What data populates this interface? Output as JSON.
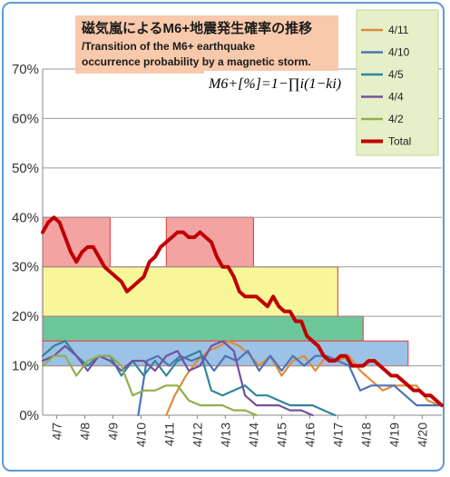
{
  "chart_data": {
    "type": "line",
    "title_line1": "磁気嵐によるM6+地震発生確率の推移",
    "title_line2": "/Transition of the M6+ earthquake",
    "title_line3": "occurrence probability by a magnetic storm.",
    "formula": "M6+[%]=1−∏i(1−ki)",
    "ylim": [
      0,
      70
    ],
    "yticks": [
      "0%",
      "10%",
      "20%",
      "30%",
      "40%",
      "50%",
      "60%",
      "70%"
    ],
    "xlim": [
      6.5,
      20.7
    ],
    "xticks": [
      {
        "v": 7,
        "label": "4/7"
      },
      {
        "v": 8,
        "label": "4/8"
      },
      {
        "v": 9,
        "label": "4/9"
      },
      {
        "v": 10,
        "label": "4/10"
      },
      {
        "v": 11,
        "label": "4/11"
      },
      {
        "v": 12,
        "label": "4/12"
      },
      {
        "v": 13,
        "label": "4/13"
      },
      {
        "v": 14,
        "label": "4/14"
      },
      {
        "v": 15,
        "label": "4/15"
      },
      {
        "v": 16,
        "label": "4/16"
      },
      {
        "v": 17,
        "label": "4/17"
      },
      {
        "v": 18,
        "label": "4/18"
      },
      {
        "v": 19,
        "label": "4/19"
      },
      {
        "v": 20,
        "label": "4/20"
      }
    ],
    "bands": [
      {
        "x0": 6.5,
        "x1": 8.9,
        "y0": 30,
        "y1": 40,
        "fill": "#f4a3a3",
        "stroke": "#e05050"
      },
      {
        "x0": 10.9,
        "x1": 14.0,
        "y0": 30,
        "y1": 40,
        "fill": "#f4a3a3",
        "stroke": "#e05050"
      },
      {
        "x0": 6.5,
        "x1": 17.0,
        "y0": 20,
        "y1": 30,
        "fill": "#f7f79a",
        "stroke": "#e05050"
      },
      {
        "x0": 6.5,
        "x1": 17.9,
        "y0": 15,
        "y1": 20,
        "fill": "#6cc79a",
        "stroke": "#e05050"
      },
      {
        "x0": 6.5,
        "x1": 19.5,
        "y0": 10,
        "y1": 15,
        "fill": "#9cc2e5",
        "stroke": "#e05050"
      }
    ],
    "series": [
      {
        "name": "4/11",
        "color": "#e08a3c",
        "x": [
          10.9,
          11.2,
          11.6,
          12.0,
          12.4,
          12.8,
          13.1,
          13.5,
          13.9,
          14.2,
          14.6,
          15.0,
          15.4,
          15.8,
          16.2,
          16.6,
          17.0,
          17.4,
          17.8,
          18.2,
          18.6,
          19.0,
          19.4,
          19.8,
          20.2,
          20.6
        ],
        "y": [
          0,
          4,
          8,
          11,
          13,
          14,
          15,
          14,
          12,
          10,
          12,
          8,
          11,
          12,
          9,
          12,
          11,
          12,
          9,
          7,
          5,
          6,
          6,
          6,
          3,
          2
        ]
      },
      {
        "name": "4/10",
        "color": "#4a74b8",
        "x": [
          9.9,
          10.2,
          10.6,
          11.0,
          11.4,
          11.8,
          12.2,
          12.6,
          13.0,
          13.4,
          13.8,
          14.2,
          14.6,
          15.0,
          15.4,
          15.8,
          16.2,
          16.6,
          17.0,
          17.4,
          17.8,
          18.2,
          18.6,
          19.0,
          19.4,
          19.8,
          20.2,
          20.6
        ],
        "y": [
          0,
          11,
          12,
          10,
          12,
          11,
          12,
          9,
          12,
          11,
          13,
          9,
          12,
          9,
          12,
          10,
          12,
          12,
          11,
          10,
          5,
          6,
          6,
          6,
          4,
          2,
          2,
          2
        ]
      },
      {
        "name": "4/5",
        "color": "#31859c",
        "x": [
          6.5,
          6.9,
          7.3,
          7.7,
          8.1,
          8.5,
          8.9,
          9.3,
          9.7,
          10.1,
          10.5,
          10.9,
          11.3,
          11.7,
          12.1,
          12.5,
          12.9,
          13.3,
          13.7,
          14.1,
          14.5,
          14.9,
          15.3,
          15.7,
          16.1,
          16.5,
          16.9
        ],
        "y": [
          12,
          14,
          15,
          12,
          10,
          12,
          12,
          8,
          11,
          8,
          11,
          8,
          11,
          12,
          13,
          5,
          4,
          5,
          6,
          4,
          4,
          3,
          2,
          2,
          2,
          1,
          0
        ]
      },
      {
        "name": "4/4",
        "color": "#7451a0",
        "x": [
          6.5,
          6.9,
          7.3,
          7.7,
          8.1,
          8.5,
          8.9,
          9.3,
          9.7,
          10.1,
          10.5,
          10.9,
          11.3,
          11.7,
          12.1,
          12.5,
          12.9,
          13.3,
          13.7,
          14.1,
          14.5,
          14.9,
          15.3,
          15.7,
          16.1
        ],
        "y": [
          11,
          12,
          14,
          12,
          9,
          12,
          11,
          9,
          11,
          11,
          9,
          12,
          13,
          9,
          10,
          14,
          15,
          13,
          4,
          2,
          2,
          2,
          1,
          1,
          0
        ]
      },
      {
        "name": "4/2",
        "color": "#8fb04c",
        "x": [
          6.5,
          6.9,
          7.3,
          7.7,
          8.1,
          8.5,
          8.9,
          9.3,
          9.7,
          10.1,
          10.5,
          10.9,
          11.3,
          11.7,
          12.1,
          12.5,
          12.9,
          13.3,
          13.7,
          14.1
        ],
        "y": [
          10,
          12,
          12,
          8,
          11,
          12,
          12,
          10,
          4,
          5,
          5,
          6,
          6,
          3,
          2,
          2,
          2,
          1,
          1,
          0
        ]
      },
      {
        "name": "Total",
        "color": "#c00000",
        "x": [
          6.5,
          6.7,
          6.9,
          7.1,
          7.3,
          7.5,
          7.7,
          7.9,
          8.1,
          8.3,
          8.5,
          8.7,
          8.9,
          9.1,
          9.3,
          9.5,
          9.7,
          9.9,
          10.1,
          10.3,
          10.5,
          10.7,
          10.9,
          11.1,
          11.3,
          11.5,
          11.7,
          11.9,
          12.1,
          12.3,
          12.5,
          12.7,
          12.9,
          13.1,
          13.3,
          13.5,
          13.7,
          13.9,
          14.1,
          14.3,
          14.5,
          14.7,
          14.9,
          15.1,
          15.3,
          15.5,
          15.7,
          15.9,
          16.1,
          16.3,
          16.5,
          16.7,
          16.9,
          17.1,
          17.3,
          17.5,
          17.7,
          17.9,
          18.1,
          18.3,
          18.5,
          18.7,
          18.9,
          19.1,
          19.3,
          19.5,
          19.7,
          19.9,
          20.1,
          20.3,
          20.5,
          20.7
        ],
        "y": [
          37,
          39,
          40,
          39,
          36,
          33,
          31,
          33,
          34,
          34,
          32,
          30,
          29,
          28,
          27,
          25,
          26,
          27,
          28,
          31,
          32,
          34,
          35,
          36,
          37,
          37,
          36,
          36,
          37,
          36,
          35,
          32,
          30,
          30,
          28,
          25,
          24,
          24,
          24,
          23,
          22,
          24,
          22,
          21,
          21,
          19,
          19,
          16,
          15,
          14,
          12,
          11,
          11,
          12,
          12,
          10,
          10,
          10,
          11,
          11,
          10,
          9,
          8,
          8,
          7,
          6,
          5,
          5,
          4,
          4,
          3,
          2
        ]
      }
    ]
  }
}
